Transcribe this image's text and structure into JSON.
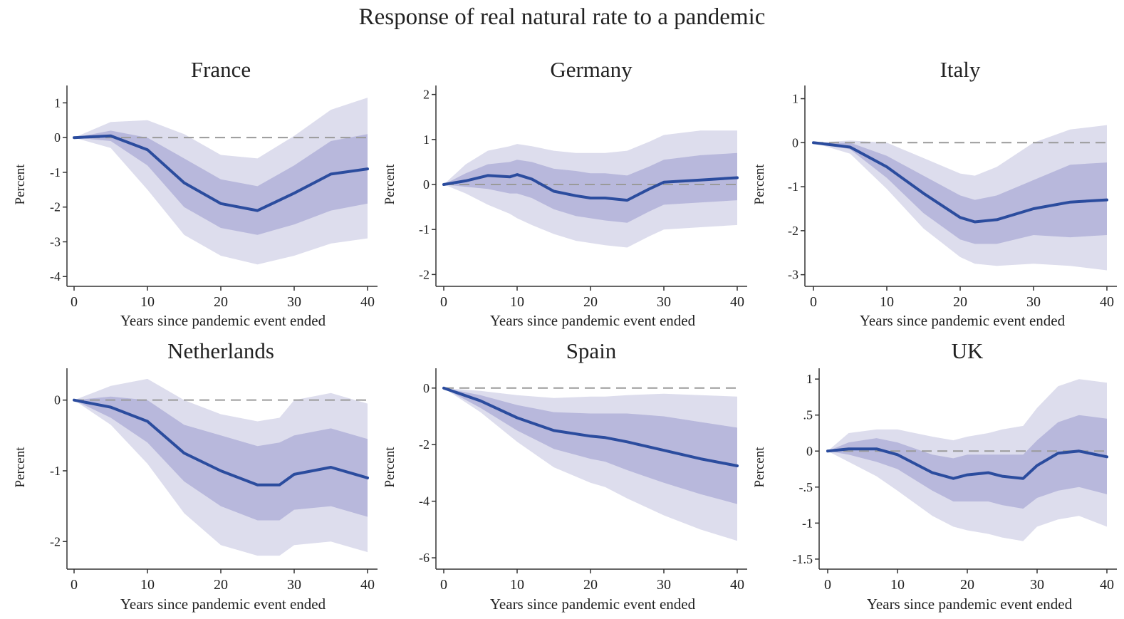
{
  "title": "Response of real natural rate to a pandemic",
  "colors": {
    "line": "#2b4c9e",
    "band_inner": "#b8b8dc",
    "band_outer": "#dddded",
    "axis": "#333333",
    "zero_line": "#9a9a9a"
  },
  "chart_data": [
    {
      "type": "line",
      "title": "France",
      "xlabel": "Years since pandemic event ended",
      "ylabel": "Percent",
      "xlim": [
        0,
        40
      ],
      "ylim": [
        -4.2,
        1.5
      ],
      "xticks": [
        0,
        10,
        20,
        30,
        40
      ],
      "xtick_labels": [
        "0",
        "10",
        "20",
        "30",
        "40"
      ],
      "yticks": [
        1,
        0,
        -1,
        -2,
        -3,
        -4
      ],
      "ytick_labels": [
        "1",
        "0",
        "-1",
        "-2",
        "-3",
        "-4"
      ],
      "zero_line": true,
      "grid": false,
      "x": [
        0,
        5,
        10,
        15,
        20,
        25,
        30,
        35,
        40
      ],
      "y": [
        0,
        0.05,
        -0.35,
        -1.3,
        -1.9,
        -2.1,
        -1.6,
        -1.05,
        -0.9
      ],
      "band_inner_upper": [
        0,
        0.2,
        0.0,
        -0.6,
        -1.2,
        -1.4,
        -0.8,
        -0.1,
        0.1
      ],
      "band_inner_lower": [
        0,
        -0.1,
        -0.8,
        -2.0,
        -2.6,
        -2.8,
        -2.5,
        -2.1,
        -1.9
      ],
      "band_outer_upper": [
        0,
        0.45,
        0.5,
        0.1,
        -0.5,
        -0.6,
        0.05,
        0.8,
        1.15
      ],
      "band_outer_lower": [
        0,
        -0.3,
        -1.5,
        -2.8,
        -3.4,
        -3.65,
        -3.4,
        -3.05,
        -2.9
      ]
    },
    {
      "type": "line",
      "title": "Germany",
      "xlabel": "Years since pandemic event ended",
      "ylabel": "Percent",
      "xlim": [
        0,
        40
      ],
      "ylim": [
        -2.2,
        2.2
      ],
      "xticks": [
        0,
        10,
        20,
        30,
        40
      ],
      "xtick_labels": [
        "0",
        "10",
        "20",
        "30",
        "40"
      ],
      "yticks": [
        2,
        1,
        0,
        -1,
        -2
      ],
      "ytick_labels": [
        "2",
        "1",
        "0",
        "-1",
        "-2"
      ],
      "zero_line": true,
      "grid": false,
      "x": [
        0,
        3,
        6,
        9,
        10,
        12,
        15,
        18,
        20,
        22,
        25,
        28,
        30,
        35,
        40
      ],
      "y": [
        0,
        0.08,
        0.2,
        0.17,
        0.22,
        0.12,
        -0.15,
        -0.25,
        -0.3,
        -0.3,
        -0.35,
        -0.1,
        0.05,
        0.1,
        0.15
      ],
      "band_inner_upper": [
        0,
        0.25,
        0.45,
        0.5,
        0.55,
        0.5,
        0.35,
        0.3,
        0.25,
        0.25,
        0.2,
        0.4,
        0.55,
        0.65,
        0.7
      ],
      "band_inner_lower": [
        0,
        -0.05,
        -0.1,
        -0.2,
        -0.2,
        -0.3,
        -0.55,
        -0.7,
        -0.75,
        -0.8,
        -0.85,
        -0.6,
        -0.45,
        -0.4,
        -0.35
      ],
      "band_outer_upper": [
        0,
        0.45,
        0.75,
        0.85,
        0.9,
        0.85,
        0.75,
        0.7,
        0.7,
        0.7,
        0.75,
        0.95,
        1.1,
        1.2,
        1.2
      ],
      "band_outer_lower": [
        0,
        -0.2,
        -0.45,
        -0.65,
        -0.75,
        -0.9,
        -1.1,
        -1.25,
        -1.3,
        -1.35,
        -1.4,
        -1.15,
        -1.0,
        -0.95,
        -0.9
      ]
    },
    {
      "type": "line",
      "title": "Italy",
      "xlabel": "Years since pandemic event ended",
      "ylabel": "Percent",
      "xlim": [
        0,
        40
      ],
      "ylim": [
        -3.2,
        1.3
      ],
      "xticks": [
        0,
        10,
        20,
        30,
        40
      ],
      "xtick_labels": [
        "0",
        "10",
        "20",
        "30",
        "40"
      ],
      "yticks": [
        1,
        0,
        -1,
        -2,
        -3
      ],
      "ytick_labels": [
        "1",
        "0",
        "-1",
        "-2",
        "-3"
      ],
      "zero_line": true,
      "grid": false,
      "x": [
        0,
        5,
        10,
        15,
        20,
        22,
        25,
        30,
        35,
        40
      ],
      "y": [
        0,
        -0.1,
        -0.55,
        -1.15,
        -1.7,
        -1.8,
        -1.75,
        -1.5,
        -1.35,
        -1.3
      ],
      "band_inner_upper": [
        0,
        0.0,
        -0.3,
        -0.75,
        -1.2,
        -1.3,
        -1.2,
        -0.85,
        -0.5,
        -0.45
      ],
      "band_inner_lower": [
        0,
        -0.15,
        -0.8,
        -1.6,
        -2.2,
        -2.3,
        -2.3,
        -2.1,
        -2.15,
        -2.1
      ],
      "band_outer_upper": [
        0,
        0.05,
        0.0,
        -0.35,
        -0.7,
        -0.75,
        -0.55,
        0.0,
        0.3,
        0.4
      ],
      "band_outer_lower": [
        0,
        -0.25,
        -1.05,
        -1.95,
        -2.6,
        -2.75,
        -2.8,
        -2.75,
        -2.8,
        -2.9
      ]
    },
    {
      "type": "line",
      "title": "Netherlands",
      "xlabel": "Years since pandemic event ended",
      "ylabel": "Percent",
      "xlim": [
        0,
        40
      ],
      "ylim": [
        -2.35,
        0.45
      ],
      "xticks": [
        0,
        10,
        20,
        30,
        40
      ],
      "xtick_labels": [
        "0",
        "10",
        "20",
        "30",
        "40"
      ],
      "yticks": [
        0,
        -1,
        -2
      ],
      "ytick_labels": [
        "0",
        "-1",
        "-2"
      ],
      "zero_line": true,
      "grid": false,
      "x": [
        0,
        5,
        10,
        15,
        20,
        25,
        28,
        30,
        35,
        40
      ],
      "y": [
        0,
        -0.1,
        -0.3,
        -0.75,
        -1.0,
        -1.2,
        -1.2,
        -1.05,
        -0.95,
        -1.1
      ],
      "band_inner_upper": [
        0,
        0.05,
        0.0,
        -0.35,
        -0.5,
        -0.65,
        -0.6,
        -0.5,
        -0.4,
        -0.55
      ],
      "band_inner_lower": [
        0,
        -0.25,
        -0.6,
        -1.15,
        -1.5,
        -1.7,
        -1.7,
        -1.55,
        -1.5,
        -1.65
      ],
      "band_outer_upper": [
        0,
        0.2,
        0.3,
        0.0,
        -0.2,
        -0.3,
        -0.25,
        0.0,
        0.1,
        -0.05
      ],
      "band_outer_lower": [
        0,
        -0.35,
        -0.9,
        -1.6,
        -2.05,
        -2.2,
        -2.2,
        -2.05,
        -2.0,
        -2.15
      ]
    },
    {
      "type": "line",
      "title": "Spain",
      "xlabel": "Years since pandemic event ended",
      "ylabel": "Percent",
      "xlim": [
        0,
        40
      ],
      "ylim": [
        -6.3,
        0.7
      ],
      "xticks": [
        0,
        10,
        20,
        30,
        40
      ],
      "xtick_labels": [
        "0",
        "10",
        "20",
        "30",
        "40"
      ],
      "yticks": [
        0,
        -2,
        -4,
        -6
      ],
      "ytick_labels": [
        "0",
        "-2",
        "-4",
        "-6"
      ],
      "zero_line": true,
      "grid": false,
      "x": [
        0,
        5,
        10,
        15,
        20,
        22,
        25,
        30,
        35,
        40
      ],
      "y": [
        0,
        -0.45,
        -1.05,
        -1.5,
        -1.7,
        -1.75,
        -1.9,
        -2.2,
        -2.5,
        -2.75
      ],
      "band_inner_upper": [
        0,
        -0.25,
        -0.6,
        -0.85,
        -0.9,
        -0.9,
        -0.9,
        -1.0,
        -1.2,
        -1.4
      ],
      "band_inner_lower": [
        0,
        -0.7,
        -1.5,
        -2.15,
        -2.5,
        -2.6,
        -2.9,
        -3.35,
        -3.75,
        -4.1
      ],
      "band_outer_upper": [
        0,
        -0.1,
        -0.25,
        -0.35,
        -0.3,
        -0.3,
        -0.25,
        -0.2,
        -0.25,
        -0.3
      ],
      "band_outer_lower": [
        0,
        -0.85,
        -1.9,
        -2.8,
        -3.35,
        -3.5,
        -3.9,
        -4.5,
        -5.0,
        -5.4
      ]
    },
    {
      "type": "line",
      "title": "UK",
      "xlabel": "Years since pandemic event ended",
      "ylabel": "Percent",
      "xlim": [
        0,
        40
      ],
      "ylim": [
        -1.6,
        1.15
      ],
      "xticks": [
        0,
        10,
        20,
        30,
        40
      ],
      "xtick_labels": [
        "0",
        "10",
        "20",
        "30",
        "40"
      ],
      "yticks": [
        1,
        0.5,
        0,
        -0.5,
        -1,
        -1.5
      ],
      "ytick_labels": [
        "1",
        ".5",
        "0",
        "-.5",
        "-1",
        "-1.5"
      ],
      "zero_line": true,
      "grid": false,
      "x": [
        0,
        3,
        7,
        10,
        15,
        18,
        20,
        23,
        25,
        28,
        30,
        33,
        36,
        40
      ],
      "y": [
        0,
        0.03,
        0.03,
        -0.05,
        -0.3,
        -0.38,
        -0.33,
        -0.3,
        -0.35,
        -0.38,
        -0.2,
        -0.03,
        0.0,
        -0.08
      ],
      "band_inner_upper": [
        0,
        0.12,
        0.18,
        0.12,
        -0.05,
        -0.1,
        -0.05,
        -0.05,
        -0.05,
        -0.05,
        0.15,
        0.4,
        0.5,
        0.45
      ],
      "band_inner_lower": [
        0,
        -0.05,
        -0.15,
        -0.25,
        -0.55,
        -0.7,
        -0.7,
        -0.7,
        -0.75,
        -0.8,
        -0.65,
        -0.55,
        -0.5,
        -0.6
      ],
      "band_outer_upper": [
        0,
        0.25,
        0.3,
        0.3,
        0.2,
        0.15,
        0.2,
        0.25,
        0.3,
        0.35,
        0.6,
        0.9,
        1.0,
        0.95
      ],
      "band_outer_lower": [
        0,
        -0.15,
        -0.35,
        -0.55,
        -0.9,
        -1.05,
        -1.1,
        -1.15,
        -1.2,
        -1.25,
        -1.05,
        -0.95,
        -0.9,
        -1.05
      ]
    }
  ]
}
